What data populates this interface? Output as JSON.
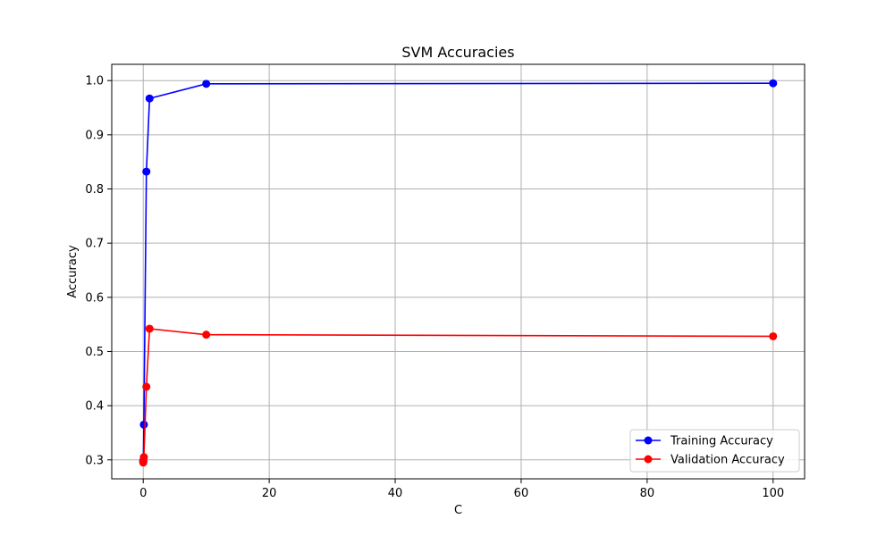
{
  "chart_data": {
    "type": "line",
    "title": "SVM Accuracies",
    "xlabel": "C",
    "ylabel": "Accuracy",
    "xlim": [
      -5,
      105
    ],
    "ylim": [
      0.265,
      1.03
    ],
    "xticks": [
      0,
      20,
      40,
      60,
      80,
      100
    ],
    "yticks": [
      0.3,
      0.4,
      0.5,
      0.6,
      0.7,
      0.8,
      0.9,
      1.0
    ],
    "xtick_labels": [
      "0",
      "20",
      "40",
      "60",
      "80",
      "100"
    ],
    "ytick_labels": [
      "0.3",
      "0.4",
      "0.5",
      "0.6",
      "0.7",
      "0.8",
      "0.9",
      "1.0"
    ],
    "grid": true,
    "legend_position": "bottom-right",
    "series": [
      {
        "name": "Training Accuracy",
        "color": "#0000ff",
        "marker": "circle",
        "x": [
          0.001,
          0.01,
          0.1,
          0.5,
          1,
          10,
          100
        ],
        "y": [
          0.297,
          0.299,
          0.365,
          0.832,
          0.967,
          0.994,
          0.995
        ]
      },
      {
        "name": "Validation Accuracy",
        "color": "#ff0000",
        "marker": "circle",
        "x": [
          0.001,
          0.01,
          0.1,
          0.5,
          1,
          10,
          100
        ],
        "y": [
          0.295,
          0.297,
          0.305,
          0.435,
          0.542,
          0.531,
          0.528
        ]
      }
    ]
  }
}
